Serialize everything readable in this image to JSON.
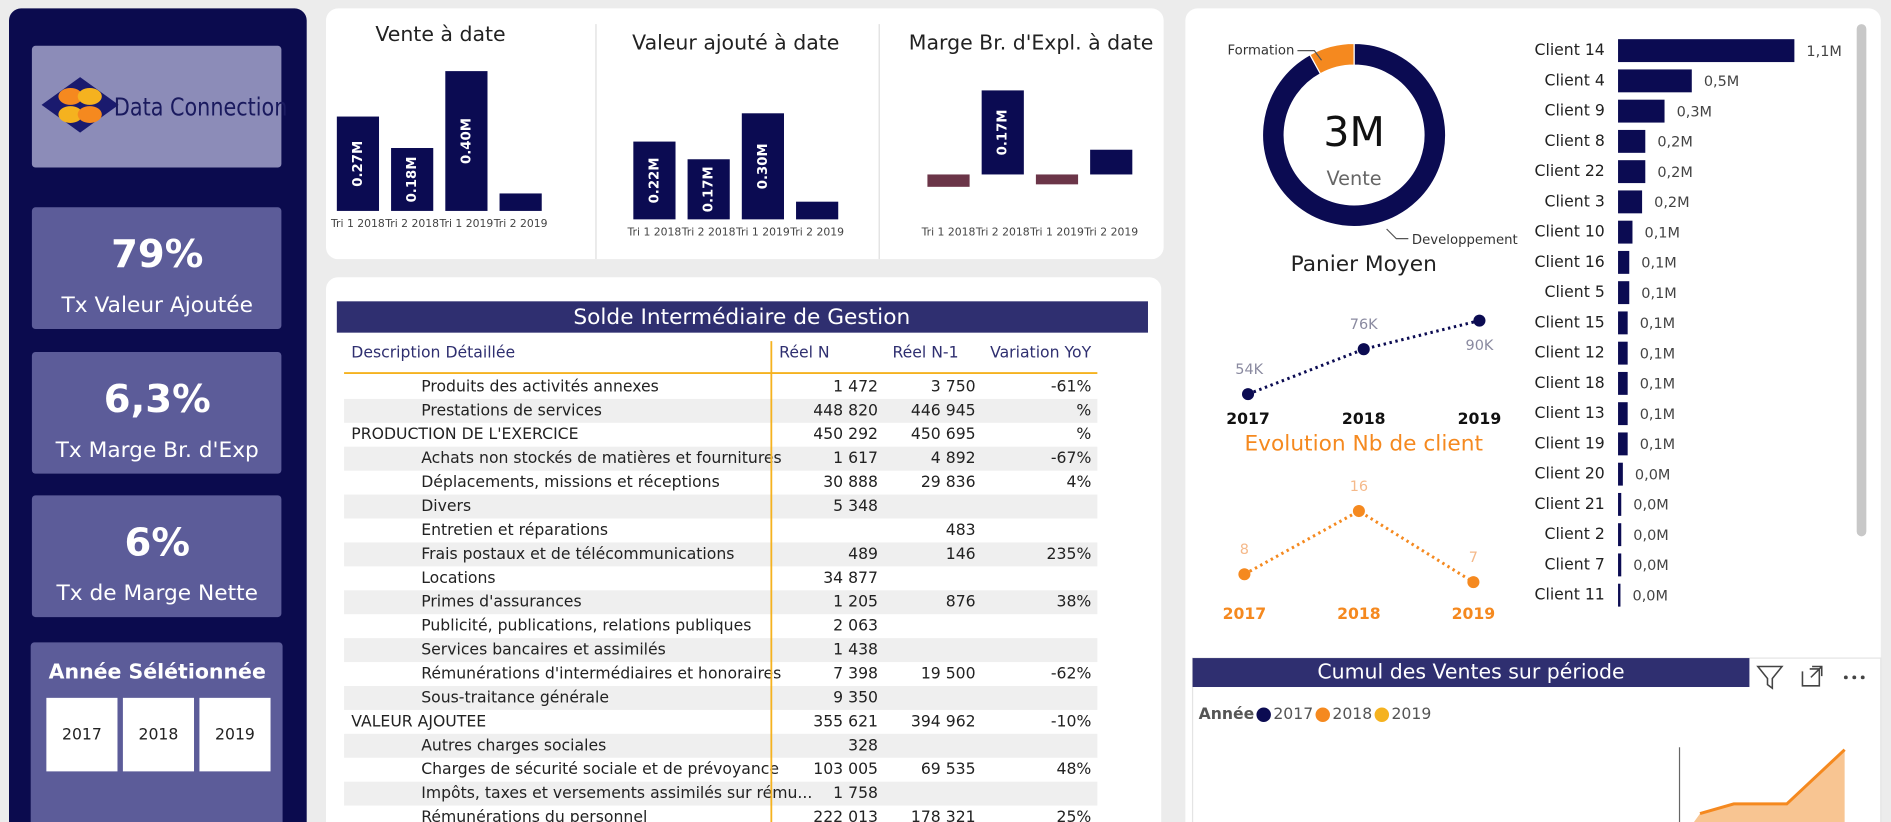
{
  "sidebar": {
    "logo": "Data Connection",
    "kpis": [
      {
        "value": "79%",
        "label": "Tx Valeur Ajoutée"
      },
      {
        "value": "6,3%",
        "label": "Tx Marge Br. d'Exp"
      },
      {
        "value": "6%",
        "label": "Tx de Marge Nette"
      }
    ],
    "year_filter": {
      "title": "Année Sélétionnée",
      "options": [
        "2017",
        "2018",
        "2019"
      ]
    }
  },
  "top_charts": [
    {
      "type": "bar",
      "title": "Vente à date",
      "categories": [
        "Tri 1 2018",
        "Tri 2 2018",
        "Tri 1 2019",
        "Tri 2 2019"
      ],
      "values": [
        0.27,
        0.18,
        0.4,
        0.05
      ],
      "value_labels": [
        "0.27M",
        "0.18M",
        "0.40M",
        null
      ],
      "color": "#0b0b52",
      "negative_color": "#6b3548"
    },
    {
      "type": "bar",
      "title": "Valeur ajouté à date",
      "categories": [
        "Tri 1 2018",
        "Tri 2 2018",
        "Tri 1 2019",
        "Tri 2 2019"
      ],
      "values": [
        0.22,
        0.17,
        0.3,
        0.05
      ],
      "value_labels": [
        "0.22M",
        "0.17M",
        "0.30M",
        null
      ],
      "color": "#0b0b52",
      "negative_color": "#6b3548"
    },
    {
      "type": "bar",
      "title": "Marge Br. d'Expl. à date",
      "categories": [
        "Tri 1 2018",
        "Tri 2 2018",
        "Tri 1 2019",
        "Tri 2 2019"
      ],
      "values": [
        -0.025,
        0.17,
        -0.02,
        0.05
      ],
      "value_labels": [
        null,
        "0.17M",
        null,
        null
      ],
      "color": "#0b0b52",
      "negative_color": "#6b3548"
    }
  ],
  "table": {
    "title": "Solde Intermédiaire de Gestion",
    "columns": [
      "Description Détaillée",
      "Réel N",
      "Réel N-1",
      "Variation YoY"
    ],
    "sections": [
      {
        "items": [
          [
            "Produits des activités annexes",
            "1 472",
            "3 750",
            "-61%"
          ],
          [
            "Prestations de services",
            "448 820",
            "446 945",
            "%"
          ]
        ],
        "total": [
          "PRODUCTION DE L'EXERCICE",
          "450 292",
          "450 695",
          "%"
        ]
      },
      {
        "items": [
          [
            "Achats non stockés de matières et fournitures",
            "1 617",
            "4 892",
            "-67%"
          ],
          [
            "Déplacements, missions et réceptions",
            "30 888",
            "29 836",
            "4%"
          ],
          [
            "Divers",
            "5 348",
            null,
            null
          ],
          [
            "Entretien et réparations",
            null,
            "483",
            null
          ],
          [
            "Frais postaux et de télécommunications",
            "489",
            "146",
            "235%"
          ],
          [
            "Locations",
            "34 877",
            null,
            null
          ],
          [
            "Primes d'assurances",
            "1 205",
            "876",
            "38%"
          ],
          [
            "Publicité, publications, relations publiques",
            "2 063",
            null,
            null
          ],
          [
            "Services bancaires et assimilés",
            "1 438",
            null,
            null
          ],
          [
            "Rémunérations d'intermédiaires et honoraires",
            "7 398",
            "19 500",
            "-62%"
          ],
          [
            "Sous-traitance générale",
            "9 350",
            null,
            null
          ]
        ],
        "total": [
          "VALEUR AJOUTEE",
          "355 621",
          "394 962",
          "-10%"
        ]
      },
      {
        "items": [
          [
            "Autres charges sociales",
            "328",
            null,
            null
          ],
          [
            "Charges de sécurité sociale et de prévoyance",
            "103 005",
            "69 535",
            "48%"
          ],
          [
            "Impôts, taxes et versements assimilés sur rému...",
            "1 758",
            null,
            null
          ],
          [
            "Rémunérations du personnel",
            "222 013",
            "178 321",
            "25%"
          ]
        ]
      }
    ]
  },
  "donut": {
    "type": "pie",
    "center_value": "3M",
    "center_label": "Vente",
    "categories": [
      "Developpement",
      "Formation"
    ],
    "values": [
      92,
      8
    ],
    "colors": [
      "#0b0b52",
      "#f5891f"
    ]
  },
  "panier_line": {
    "type": "line",
    "title": "Panier Moyen",
    "x": [
      2017,
      2018,
      2019
    ],
    "values": [
      54000,
      76000,
      90000
    ],
    "value_labels": [
      "54K",
      "76K",
      "90K"
    ],
    "color": "#0b0b52"
  },
  "client_line": {
    "type": "line",
    "title": "Evolution Nb de client",
    "x": [
      2017,
      2018,
      2019
    ],
    "values": [
      8,
      16,
      7
    ],
    "color": "#f5891f"
  },
  "client_bars": {
    "type": "bar",
    "orientation": "horizontal",
    "categories": [
      "Client 14",
      "Client 4",
      "Client 9",
      "Client 8",
      "Client 22",
      "Client 3",
      "Client 10",
      "Client 16",
      "Client 5",
      "Client 15",
      "Client 12",
      "Client 18",
      "Client 13",
      "Client 19",
      "Client 20",
      "Client 21",
      "Client 2",
      "Client 7",
      "Client 11"
    ],
    "values": [
      1.1,
      0.46,
      0.29,
      0.17,
      0.17,
      0.15,
      0.09,
      0.07,
      0.07,
      0.06,
      0.06,
      0.06,
      0.06,
      0.06,
      0.03,
      0.02,
      0.02,
      0.02,
      0.015
    ],
    "value_labels": [
      "1,1M",
      "0,5M",
      "0,3M",
      "0,2M",
      "0,2M",
      "0,2M",
      "0,1M",
      "0,1M",
      "0,1M",
      "0,1M",
      "0,1M",
      "0,1M",
      "0,1M",
      "0,1M",
      "0,0M",
      "0,0M",
      "0,0M",
      "0,0M",
      "0,0M"
    ],
    "color": "#0b0b52"
  },
  "cumul": {
    "title": "Cumul des Ventes sur période",
    "legend_title": "Année",
    "series": [
      {
        "name": "2017",
        "color": "#0b0b52"
      },
      {
        "name": "2018",
        "color": "#f5891f"
      },
      {
        "name": "2019",
        "color": "#f5b21f"
      }
    ]
  }
}
